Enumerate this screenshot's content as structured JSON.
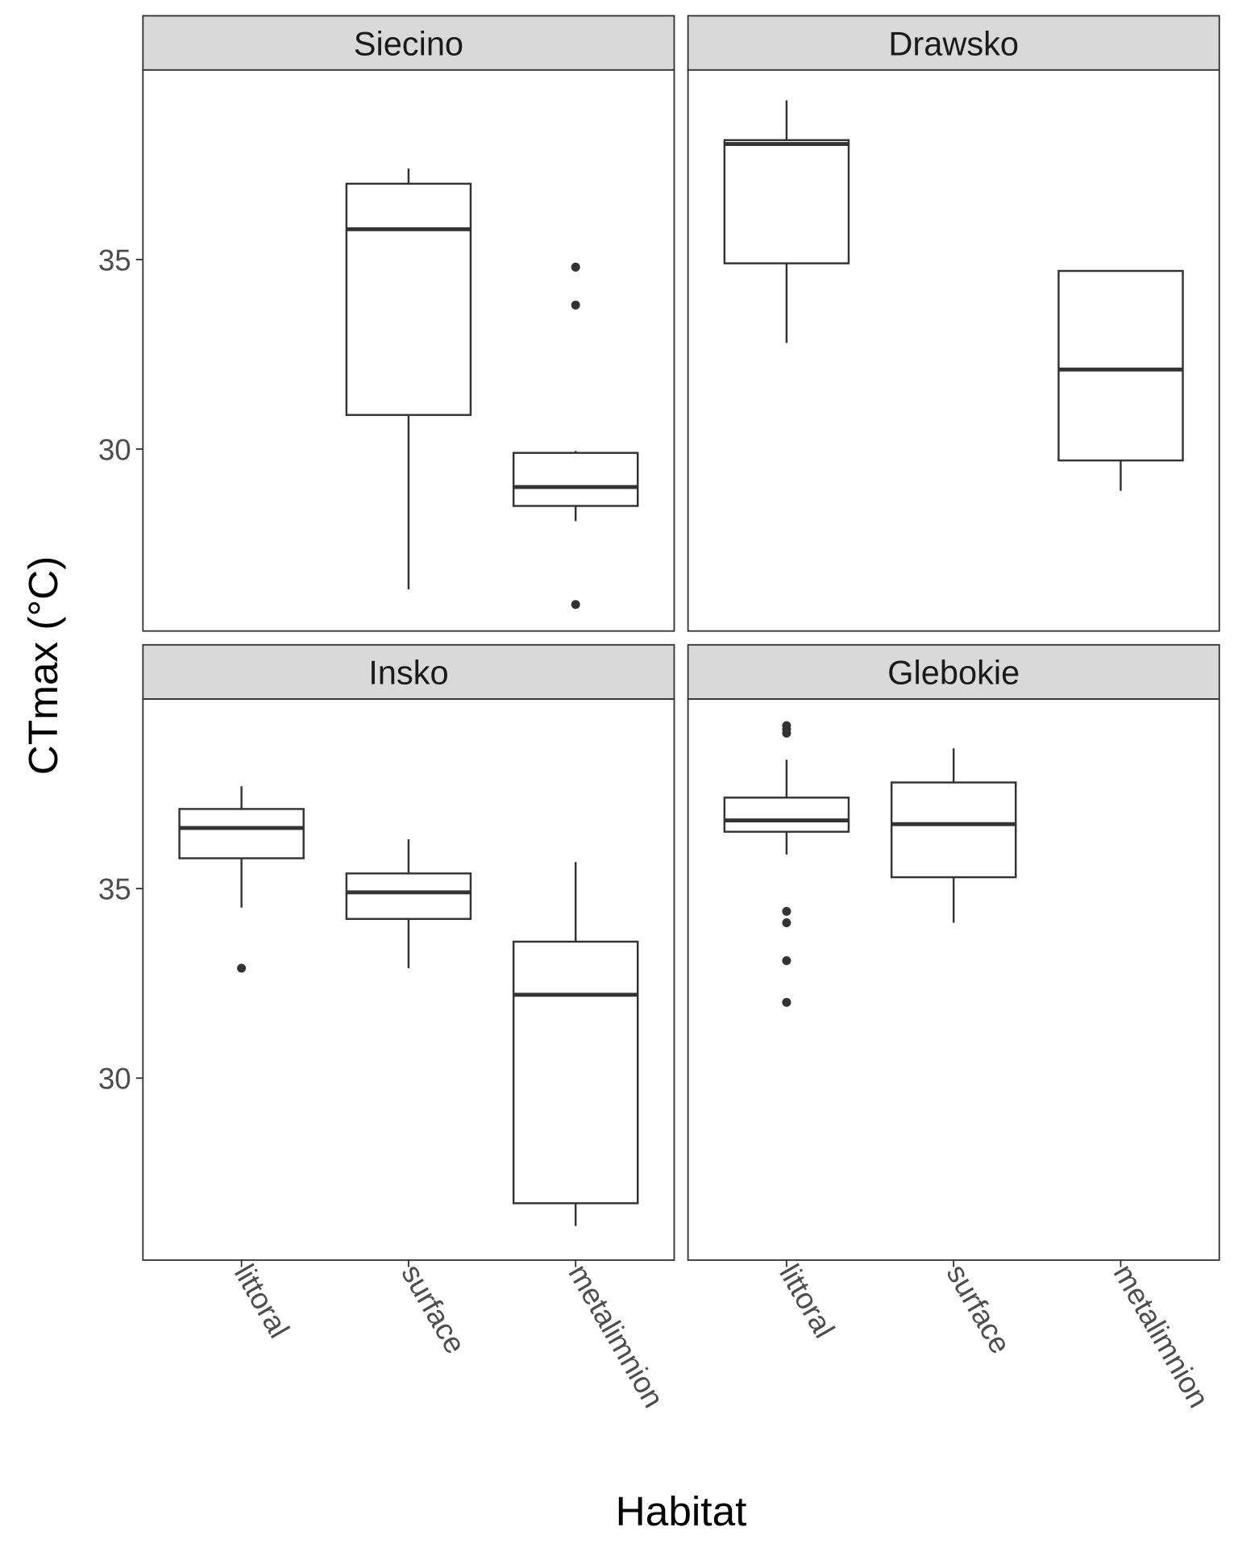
{
  "chart_data": {
    "type": "boxplot",
    "xlabel": "Habitat",
    "ylabel": "CTmax (°C)",
    "categories": [
      "littoral",
      "surface",
      "metalimnion"
    ],
    "yticks": [
      30,
      35
    ],
    "ylim": [
      25.2,
      40.0
    ],
    "grid": false,
    "facets": [
      {
        "name": "Siecino",
        "boxes": [
          {
            "category": "surface",
            "whisker_low": 26.3,
            "q1": 30.9,
            "median": 35.8,
            "q3": 37.0,
            "whisker_high": 37.4,
            "outliers": []
          },
          {
            "category": "metalimnion",
            "whisker_low": 28.1,
            "q1": 28.5,
            "median": 29.0,
            "q3": 29.9,
            "whisker_high": 29.95,
            "outliers": [
              34.8,
              33.8,
              25.9
            ]
          }
        ]
      },
      {
        "name": "Drawsko",
        "boxes": [
          {
            "category": "littoral",
            "whisker_low": 32.8,
            "q1": 34.9,
            "median": 38.05,
            "q3": 38.15,
            "whisker_high": 39.2,
            "outliers": []
          },
          {
            "category": "metalimnion",
            "whisker_low": 28.9,
            "q1": 29.7,
            "median": 32.1,
            "q3": 34.7,
            "whisker_high": 34.72,
            "outliers": []
          }
        ]
      },
      {
        "name": "Insko",
        "boxes": [
          {
            "category": "littoral",
            "whisker_low": 34.5,
            "q1": 35.8,
            "median": 36.6,
            "q3": 37.1,
            "whisker_high": 37.7,
            "outliers": [
              32.9
            ]
          },
          {
            "category": "surface",
            "whisker_low": 32.9,
            "q1": 34.2,
            "median": 34.9,
            "q3": 35.4,
            "whisker_high": 36.3,
            "outliers": []
          },
          {
            "category": "metalimnion",
            "whisker_low": 26.1,
            "q1": 26.7,
            "median": 32.2,
            "q3": 33.6,
            "whisker_high": 35.7,
            "outliers": []
          }
        ]
      },
      {
        "name": "Glebokie",
        "boxes": [
          {
            "category": "littoral",
            "whisker_low": 35.9,
            "q1": 36.5,
            "median": 36.8,
            "q3": 37.4,
            "whisker_high": 38.4,
            "outliers": [
              39.3,
              39.2,
              39.1,
              34.4,
              34.1,
              33.1,
              32.0
            ]
          },
          {
            "category": "surface",
            "whisker_low": 34.1,
            "q1": 35.3,
            "median": 36.7,
            "q3": 37.8,
            "whisker_high": 38.7,
            "outliers": []
          }
        ]
      }
    ]
  }
}
